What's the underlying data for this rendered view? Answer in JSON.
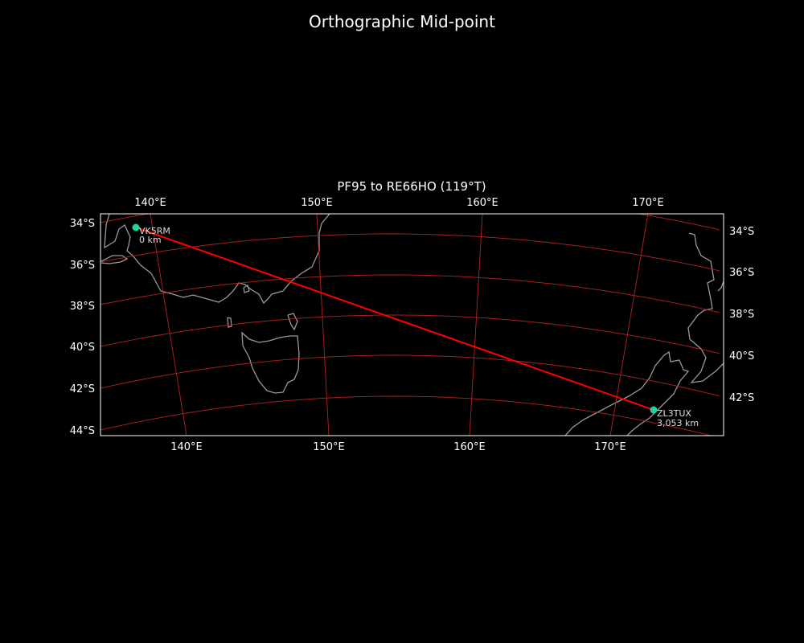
{
  "figure": {
    "title": "Orthographic Mid-point",
    "background": "#000000"
  },
  "map": {
    "title": "PF95 to RE66HO (119°T)",
    "projection": "orthographic",
    "extent": {
      "lon": [
        134,
        178
      ],
      "lat": [
        -44.5,
        -33.5
      ]
    },
    "top_lon_ticks": [
      "140°E",
      "150°E",
      "160°E",
      "170°E"
    ],
    "bottom_lon_ticks": [
      "140°E",
      "150°E",
      "160°E",
      "170°E"
    ],
    "left_lat_ticks": [
      "34°S",
      "36°S",
      "38°S",
      "40°S",
      "42°S",
      "44°S"
    ],
    "right_lat_ticks": [
      "34°S",
      "36°S",
      "38°S",
      "40°S",
      "42°S"
    ],
    "gridline_color": "#b22222",
    "coastline_color": "#999999",
    "path_color": "#ff0000",
    "marker_color": "#1fd2a0",
    "stations": [
      {
        "call": "VK5RM",
        "distance": "0 km"
      },
      {
        "call": "ZL3TUX",
        "distance": "3,053 km"
      }
    ]
  }
}
